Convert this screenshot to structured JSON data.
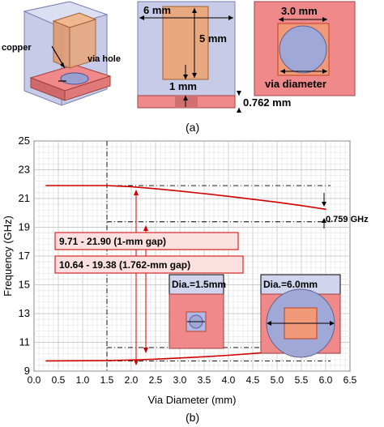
{
  "panel_a": {
    "labels": {
      "copper": "copper",
      "via_hole": "via hole",
      "width": "6 mm",
      "length": "5 mm",
      "gap": "1 mm",
      "thickness": "0.762 mm",
      "small_dia": "3.0 mm",
      "via_diameter": "via diameter"
    },
    "caption": "(a)"
  },
  "chart_data": {
    "type": "line",
    "xlabel": "Via Diameter (mm)",
    "ylabel": "Frequency (GHz)",
    "xlim": [
      0,
      6.5
    ],
    "ylim": [
      9,
      25
    ],
    "xticks": [
      "0.0",
      "0.5",
      "1.0",
      "1.5",
      "2.0",
      "2.5",
      "3.0",
      "3.5",
      "4.0",
      "4.5",
      "5.0",
      "5.5",
      "6.0",
      "6.5"
    ],
    "yticks": [
      "9",
      "11",
      "13",
      "15",
      "17",
      "19",
      "21",
      "23",
      "25"
    ],
    "grid": true,
    "series": [
      {
        "x": [
          0.25,
          1.5,
          2.0,
          2.5,
          3.0,
          3.5,
          4.0,
          4.5,
          5.0,
          5.5,
          6.0
        ],
        "y": [
          21.9,
          21.9,
          21.82,
          21.68,
          21.52,
          21.34,
          21.15,
          20.95,
          20.74,
          20.51,
          20.25
        ]
      },
      {
        "x": [
          0.25,
          1.5,
          2.0,
          2.5,
          3.0,
          3.5,
          4.0,
          4.5,
          5.0,
          5.5,
          6.0
        ],
        "y": [
          9.71,
          9.73,
          9.77,
          9.83,
          9.91,
          10.0,
          10.1,
          10.22,
          10.35,
          10.49,
          10.64
        ]
      }
    ],
    "reference_lines": {
      "x": [
        1.5
      ],
      "y": [
        21.9,
        19.38,
        10.64,
        9.71
      ]
    },
    "annotations": {
      "delta": "0.759 GHz",
      "range1": "9.71 - 21.90 (1-mm gap)",
      "range2": "10.64 - 19.38 (1.762-mm gap)",
      "inset1": "Dia.=1.5mm",
      "inset2": "Dia.=6.0mm"
    },
    "caption": "(b)"
  },
  "colors": {
    "curve": "#d00000",
    "substrate": "#f08a8a",
    "patch": "#e0a070",
    "via": "#a0a8d8",
    "iso": "#b8bce0"
  }
}
